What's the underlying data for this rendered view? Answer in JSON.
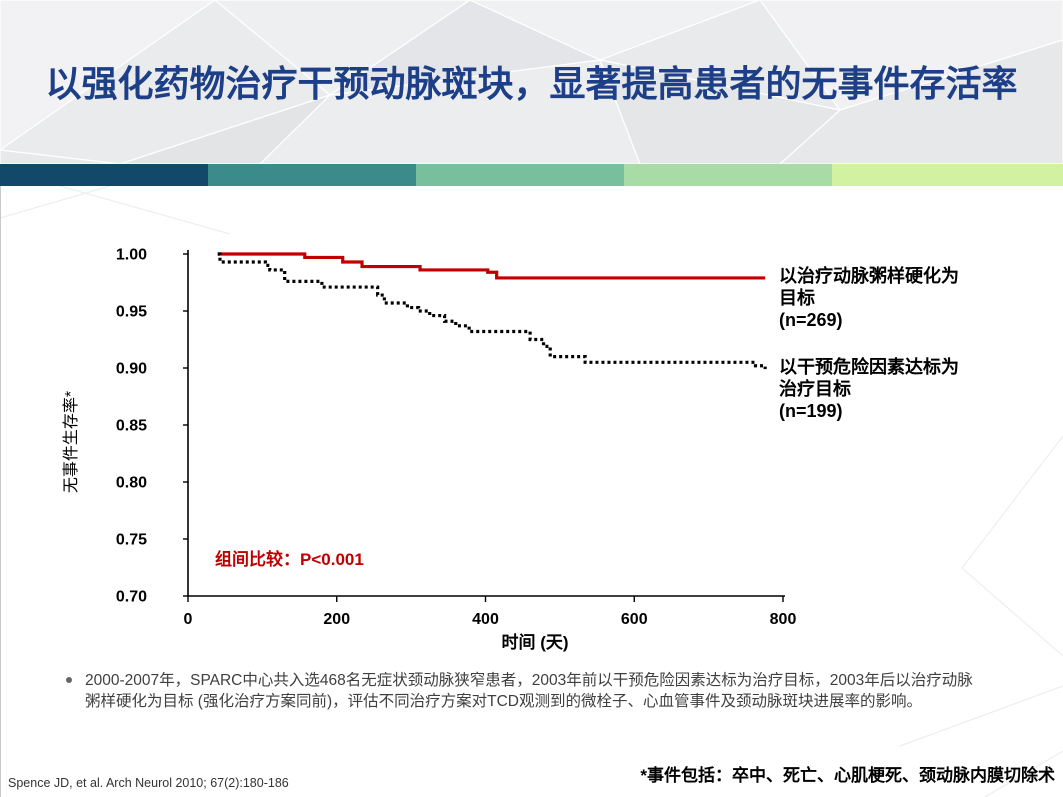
{
  "slide": {
    "title": "以强化药物治疗干预动脉斑块，显著提高患者的无事件存活率",
    "title_color": "#1d3f87",
    "band_colors": [
      "#12486a",
      "#3b8b8b",
      "#78bf9d",
      "#a9dba6",
      "#d3f2a1"
    ]
  },
  "chart_data": {
    "type": "line",
    "step": true,
    "xlabel": "时间 (天)",
    "ylabel": "无事件生存率*",
    "xlim": [
      0,
      800
    ],
    "ylim": [
      0.7,
      1.0
    ],
    "xticks": [
      0,
      200,
      400,
      600,
      800
    ],
    "xtick_labels": [
      "0",
      "200",
      "400",
      "600",
      "800"
    ],
    "yticks": [
      1.0,
      0.95,
      0.9,
      0.85,
      0.8,
      0.75,
      0.7
    ],
    "ytick_labels": [
      "1.00",
      "0.95",
      "0.90",
      "0.85",
      "0.80",
      "0.75",
      "0.70"
    ],
    "grid": false,
    "legend": "right",
    "series": [
      {
        "label_lines": [
          "以治疗动脉粥样硬化为",
          "目标"
        ],
        "n_label": "(n=269)",
        "color": "#c00000",
        "points": [
          [
            40,
            1.0
          ],
          [
            157,
            0.997
          ],
          [
            208,
            0.993
          ],
          [
            234,
            0.989
          ],
          [
            312,
            0.986
          ],
          [
            403,
            0.984
          ],
          [
            415,
            0.979
          ],
          [
            776,
            0.979
          ]
        ]
      },
      {
        "label_lines": [
          "以干预危险因素达标为",
          "治疗目标"
        ],
        "n_label": "(n=199)",
        "color": "#000000",
        "points": [
          [
            40,
            1.0
          ],
          [
            43,
            0.993
          ],
          [
            104,
            0.99
          ],
          [
            110,
            0.986
          ],
          [
            130,
            0.976
          ],
          [
            180,
            0.971
          ],
          [
            255,
            0.964
          ],
          [
            264,
            0.957
          ],
          [
            295,
            0.953
          ],
          [
            310,
            0.95
          ],
          [
            325,
            0.946
          ],
          [
            345,
            0.941
          ],
          [
            360,
            0.937
          ],
          [
            378,
            0.932
          ],
          [
            460,
            0.925
          ],
          [
            478,
            0.919
          ],
          [
            487,
            0.91
          ],
          [
            534,
            0.905
          ],
          [
            763,
            0.902
          ],
          [
            776,
            0.899
          ]
        ]
      }
    ],
    "annotations": [
      {
        "text": "组间比较：P<0.001",
        "color": "#c00000"
      }
    ]
  },
  "notes": {
    "bullet_lines": [
      "2000-2007年，SPARC中心共入选468名无症状颈动脉狭窄患者，2003年前以干预危险因素达标为治疗目标，2003年后以治疗动脉",
      "粥样硬化为目标 (强化治疗方案同前)，评估不同治疗方案对TCD观测到的微栓子、心血管事件及颈动脉斑块进展率的影响。"
    ]
  },
  "footer": {
    "citation": "Spence JD, et al. Arch Neurol 2010; 67(2):180-186",
    "event_note": "*事件包括：卒中、死亡、心肌梗死、颈动脉内膜切除术"
  }
}
